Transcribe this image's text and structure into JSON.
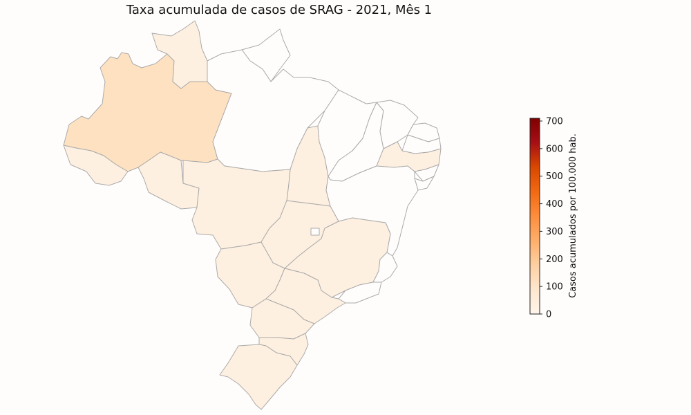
{
  "title": "Taxa acumulada de casos de SRAG - 2021, Mês 1",
  "colorbar": {
    "label": "Casos acumulados por 100.000 hab.",
    "min": 0,
    "max": 710,
    "ticks": [
      "0",
      "100",
      "200",
      "300",
      "400",
      "500",
      "600",
      "700"
    ],
    "colors": [
      "#fff5eb",
      "#fee6ce",
      "#fdd0a2",
      "#fdae6b",
      "#fd8d3c",
      "#f16913",
      "#d94801",
      "#a50f15",
      "#7f0000"
    ]
  },
  "palette": {
    "none": "#fffdfc",
    "very_low": "#fef0e0",
    "low": "#fde1c1"
  },
  "regions": [
    {
      "id": "AM",
      "level": "low"
    },
    {
      "id": "RR",
      "level": "very_low"
    },
    {
      "id": "AC",
      "level": "very_low"
    },
    {
      "id": "RO",
      "level": "very_low"
    },
    {
      "id": "MT",
      "level": "very_low"
    },
    {
      "id": "TO",
      "level": "very_low"
    },
    {
      "id": "GO",
      "level": "very_low"
    },
    {
      "id": "MG",
      "level": "very_low"
    },
    {
      "id": "MS",
      "level": "very_low"
    },
    {
      "id": "SP",
      "level": "very_low"
    },
    {
      "id": "PR",
      "level": "very_low"
    },
    {
      "id": "SC",
      "level": "very_low"
    },
    {
      "id": "RS",
      "level": "very_low"
    },
    {
      "id": "PE",
      "level": "very_low"
    },
    {
      "id": "PA",
      "level": "none"
    },
    {
      "id": "AP",
      "level": "none"
    },
    {
      "id": "MA",
      "level": "none"
    },
    {
      "id": "PI",
      "level": "none"
    },
    {
      "id": "CE",
      "level": "none"
    },
    {
      "id": "RN",
      "level": "none"
    },
    {
      "id": "PB",
      "level": "none"
    },
    {
      "id": "AL",
      "level": "none"
    },
    {
      "id": "SE",
      "level": "none"
    },
    {
      "id": "BA",
      "level": "none"
    },
    {
      "id": "ES",
      "level": "none"
    },
    {
      "id": "RJ",
      "level": "none"
    },
    {
      "id": "DF",
      "level": "none"
    }
  ]
}
